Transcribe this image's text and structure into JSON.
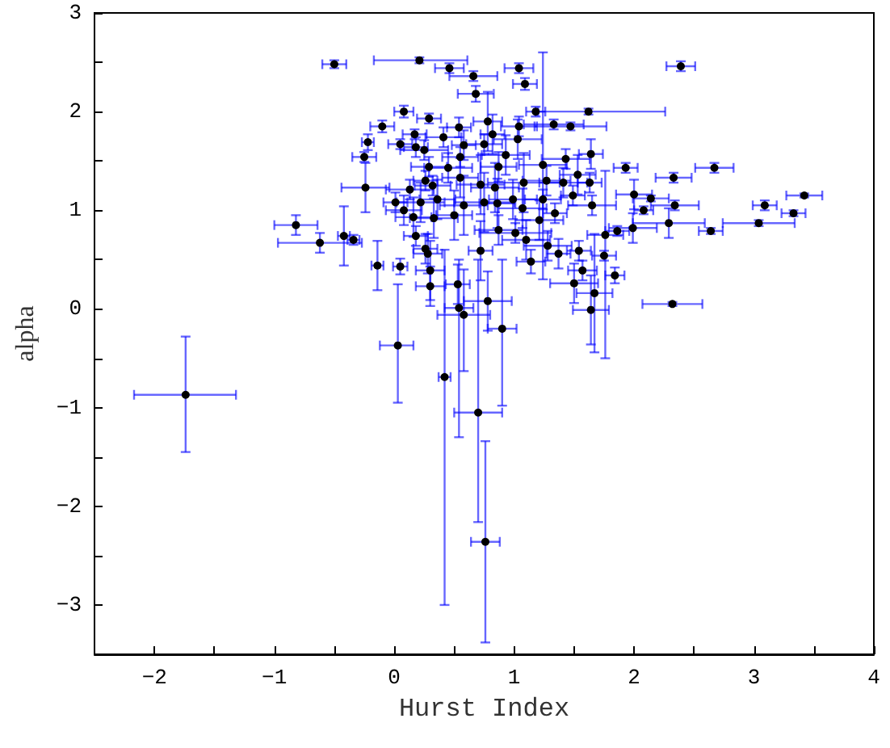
{
  "chart_data": {
    "type": "scatter",
    "xlabel": "Hurst Index",
    "ylabel": "alpha",
    "marker": "circle",
    "xlim": [
      -2.5,
      4
    ],
    "ylim": [
      -3.5,
      3
    ],
    "xticks": [
      {
        "value": -2,
        "label": "−2"
      },
      {
        "value": -1.5,
        "label": null
      },
      {
        "value": -1,
        "label": "−1"
      },
      {
        "value": -0.5,
        "label": null
      },
      0,
      {
        "value": 0.5,
        "label": null
      },
      1,
      {
        "value": 1.5,
        "label": null
      },
      2,
      {
        "value": 2.5,
        "label": null
      },
      3,
      {
        "value": 3.5,
        "label": null
      },
      4
    ],
    "yticks": [
      {
        "value": -3,
        "label": "−3"
      },
      {
        "value": -2.5,
        "label": null
      },
      {
        "value": -2,
        "label": "−2"
      },
      {
        "value": -1.5,
        "label": null
      },
      {
        "value": -1,
        "label": "−1"
      },
      {
        "value": -0.5,
        "label": null
      },
      0,
      {
        "value": 0.5,
        "label": null
      },
      1,
      {
        "value": 1.5,
        "label": null
      },
      2,
      {
        "value": 2.5,
        "label": null
      },
      3
    ],
    "series": [
      {
        "color": "#000000",
        "x": [
          -1.74,
          0.76,
          0.42,
          0.7,
          0.03,
          0.9,
          0.54,
          0.58,
          0.78,
          -0.5,
          0.21,
          0.46,
          0.66,
          0.68,
          1.04,
          1.09,
          2.39,
          0.08,
          -0.1,
          -0.22,
          -0.25,
          -0.24,
          -0.82,
          -0.62,
          -0.42,
          -0.34,
          -0.14,
          0.05,
          0.3,
          0.3,
          0.72,
          0.53,
          1.18,
          1.62,
          1.33,
          1.47,
          1.64,
          1.93,
          2.33,
          2.67,
          3.42,
          3.33,
          3.09,
          3.04,
          2.64,
          2.29,
          2.34,
          2.14,
          2.08,
          2.0,
          1.99,
          1.86,
          1.76,
          1.75,
          1.84,
          1.67,
          1.64,
          1.5,
          1.57,
          1.54,
          1.37,
          1.14,
          1.28,
          2.32,
          1.43,
          1.24,
          1.08,
          1.27,
          1.41,
          1.53,
          1.63,
          1.49,
          1.65,
          1.24,
          1.07,
          1.34,
          1.21,
          1.01,
          1.1,
          0.05,
          0.18,
          0.29,
          0.41,
          0.58,
          0.55,
          0.54,
          0.78,
          0.82,
          1.03,
          1.04,
          0.17,
          0.25,
          0.29,
          0.45,
          0.55,
          0.75,
          0.93,
          0.87,
          0.72,
          0.84,
          0.32,
          0.26,
          0.13,
          0.01,
          0.08,
          0.22,
          0.36,
          0.58,
          0.75,
          0.86,
          0.99,
          0.16,
          0.33,
          0.5,
          0.87,
          0.18,
          0.26,
          0.28
        ],
        "values": [
          -0.87,
          -2.36,
          -0.69,
          -1.05,
          -0.37,
          -0.2,
          0.01,
          -0.06,
          0.08,
          2.48,
          2.52,
          2.44,
          2.36,
          2.18,
          2.44,
          2.28,
          2.46,
          2.0,
          1.85,
          1.69,
          1.54,
          1.23,
          0.85,
          0.67,
          0.74,
          0.7,
          0.44,
          0.43,
          0.39,
          0.23,
          0.59,
          0.25,
          2.0,
          2.0,
          1.87,
          1.85,
          1.57,
          1.43,
          1.33,
          1.43,
          1.15,
          0.97,
          1.05,
          0.87,
          0.79,
          0.87,
          1.05,
          1.12,
          1.0,
          1.16,
          0.82,
          0.79,
          0.75,
          0.54,
          0.34,
          0.16,
          -0.01,
          0.26,
          0.39,
          0.59,
          0.56,
          0.48,
          0.64,
          0.05,
          1.52,
          1.46,
          1.28,
          1.3,
          1.28,
          1.36,
          1.28,
          1.15,
          1.05,
          1.11,
          1.02,
          0.97,
          0.9,
          0.77,
          0.7,
          1.67,
          1.64,
          1.93,
          1.74,
          1.66,
          1.54,
          1.84,
          1.9,
          1.77,
          1.72,
          1.85,
          1.77,
          1.61,
          1.44,
          1.43,
          1.33,
          1.67,
          1.56,
          1.44,
          1.26,
          1.23,
          1.25,
          1.3,
          1.21,
          1.08,
          1.0,
          1.08,
          1.11,
          1.05,
          1.08,
          1.07,
          1.11,
          0.93,
          0.92,
          0.95,
          0.8,
          0.74,
          0.61,
          0.56
        ],
        "xerrors": [
          [
            -2.17,
            -1.32
          ],
          0.12,
          0.05,
          0.2,
          [
            -0.12,
            0.16
          ],
          0.12,
          0.12,
          [
            0.36,
            0.8
          ],
          0.2,
          0.1,
          [
            -0.17,
            0.61
          ],
          0.12,
          0.2,
          0.15,
          0.12,
          0.1,
          0.12,
          0.08,
          0.1,
          0.05,
          0.1,
          0.2,
          0.18,
          0.35,
          0.05,
          0.05,
          0.05,
          0.06,
          0.12,
          0.12,
          0.1,
          0.1,
          0.08,
          [
            1.2,
            2.26
          ],
          0.25,
          0.3,
          0.1,
          0.1,
          0.15,
          0.16,
          0.15,
          0.1,
          0.1,
          0.3,
          0.1,
          0.3,
          0.2,
          0.15,
          0.08,
          0.15,
          0.2,
          0.1,
          0.15,
          0.1,
          0.08,
          0.15,
          0.15,
          0.2,
          0.12,
          0.1,
          0.1,
          0.12,
          0.2,
          0.25,
          0.2,
          0.2,
          0.3,
          0.2,
          0.2,
          0.15,
          0.1,
          0.1,
          0.2,
          0.15,
          0.2,
          0.1,
          0.2,
          0.3,
          0.2,
          0.1,
          0.1,
          0.1,
          0.15,
          0.1,
          0.15,
          0.1,
          0.12,
          0.1,
          0.2,
          0.15,
          0.1,
          0.2,
          0.15,
          0.2,
          0.15,
          0.15,
          0.2,
          0.15,
          0.2,
          0.2,
          0.15,
          0.1,
          0.2,
          0.1,
          0.15,
          0.2,
          0.15,
          0.2,
          0.25,
          0.15,
          0.2,
          0.15,
          0.2,
          0.15,
          0.2,
          0.1,
          0.1,
          0.12
        ],
        "errors": [
          [
            -1.45,
            -0.28
          ],
          [
            -3.38,
            -1.34
          ],
          [
            -3.0,
            0.6
          ],
          [
            -2.16,
            0.5
          ],
          [
            -0.95,
            0.25
          ],
          [
            -0.98,
            0.5
          ],
          [
            -1.3,
            0.5
          ],
          [
            -0.63,
            0.4
          ],
          0.3,
          0.04,
          0.03,
          0.05,
          0.05,
          0.08,
          0.05,
          0.06,
          0.05,
          0.06,
          0.06,
          0.08,
          0.05,
          0.25,
          0.1,
          0.1,
          0.3,
          0.05,
          0.25,
          0.08,
          0.3,
          0.2,
          0.3,
          0.2,
          0.05,
          0.03,
          0.05,
          0.04,
          0.15,
          0.05,
          0.05,
          0.05,
          0.02,
          0.03,
          0.05,
          0.03,
          0.03,
          0.15,
          0.05,
          0.03,
          0.04,
          0.15,
          0.15,
          0.05,
          [
            -0.5,
            1.4
          ],
          0.05,
          0.08,
          0.6,
          0.35,
          0.2,
          0.1,
          0.1,
          0.15,
          0.12,
          0.15,
          0.02,
          0.1,
          [
            0.3,
            2.6
          ],
          0.3,
          0.15,
          0.15,
          0.2,
          0.1,
          0.1,
          0.1,
          0.1,
          0.2,
          0.1,
          0.2,
          0.1,
          0.2,
          0.05,
          0.1,
          0.05,
          0.1,
          0.15,
          0.1,
          0.1,
          0.3,
          0.2,
          0.2,
          0.1,
          0.05,
          0.1,
          0.1,
          0.15,
          0.2,
          0.1,
          0.2,
          0.15,
          0.3,
          0.25,
          0.1,
          0.1,
          0.1,
          0.1,
          0.15,
          0.2,
          0.2,
          0.3,
          0.3,
          0.25,
          0.2,
          0.2,
          0.2,
          0.25,
          0.15,
          0.1,
          0.15,
          0.2
        ]
      }
    ]
  }
}
